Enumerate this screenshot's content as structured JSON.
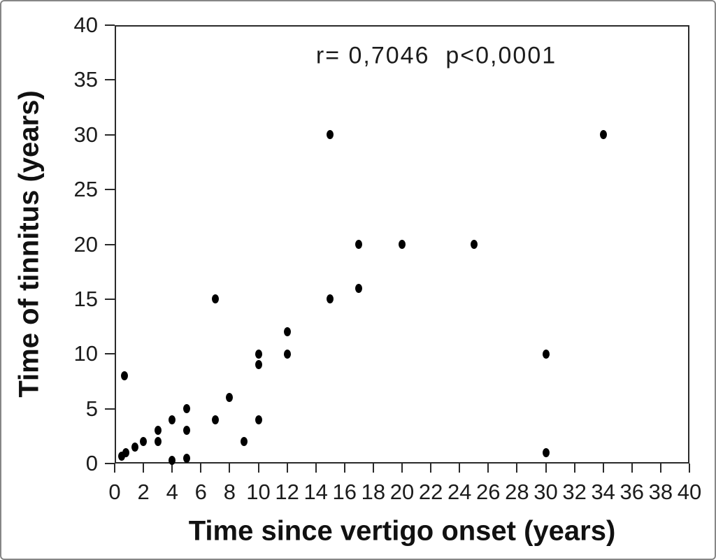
{
  "figure": {
    "background": "#ffffff",
    "border_color": "#868686",
    "axis_color": "#2a2a2a",
    "marker_color": "#000000"
  },
  "chart_data": {
    "type": "scatter",
    "title": "",
    "annotation": "r= 0,7046  p<0,0001",
    "xlabel": "Time since vertigo onset (years)",
    "ylabel": "Time of tinnitus (years)",
    "xlim": [
      0,
      40
    ],
    "ylim": [
      0,
      40
    ],
    "x_ticks": [
      0,
      2,
      4,
      6,
      8,
      10,
      12,
      14,
      16,
      18,
      20,
      22,
      24,
      26,
      28,
      30,
      32,
      34,
      36,
      38,
      40
    ],
    "y_ticks": [
      0,
      5,
      10,
      15,
      20,
      25,
      30,
      35,
      40
    ],
    "grid": false,
    "legend": "none",
    "points": [
      [
        0.5,
        0.7
      ],
      [
        0.7,
        8
      ],
      [
        0.8,
        1
      ],
      [
        1.4,
        1.5
      ],
      [
        2,
        2
      ],
      [
        3,
        2
      ],
      [
        3,
        3
      ],
      [
        4,
        0.3
      ],
      [
        4,
        4
      ],
      [
        5,
        0.5
      ],
      [
        5,
        3
      ],
      [
        5,
        5
      ],
      [
        7,
        4
      ],
      [
        7,
        15
      ],
      [
        8,
        6
      ],
      [
        9,
        2
      ],
      [
        10,
        4
      ],
      [
        10,
        9
      ],
      [
        10,
        10
      ],
      [
        12,
        10
      ],
      [
        12,
        12
      ],
      [
        15,
        15
      ],
      [
        15,
        30
      ],
      [
        17,
        16
      ],
      [
        17,
        20
      ],
      [
        20,
        20
      ],
      [
        25,
        20
      ],
      [
        30,
        1
      ],
      [
        30,
        10
      ],
      [
        34,
        30
      ]
    ]
  }
}
